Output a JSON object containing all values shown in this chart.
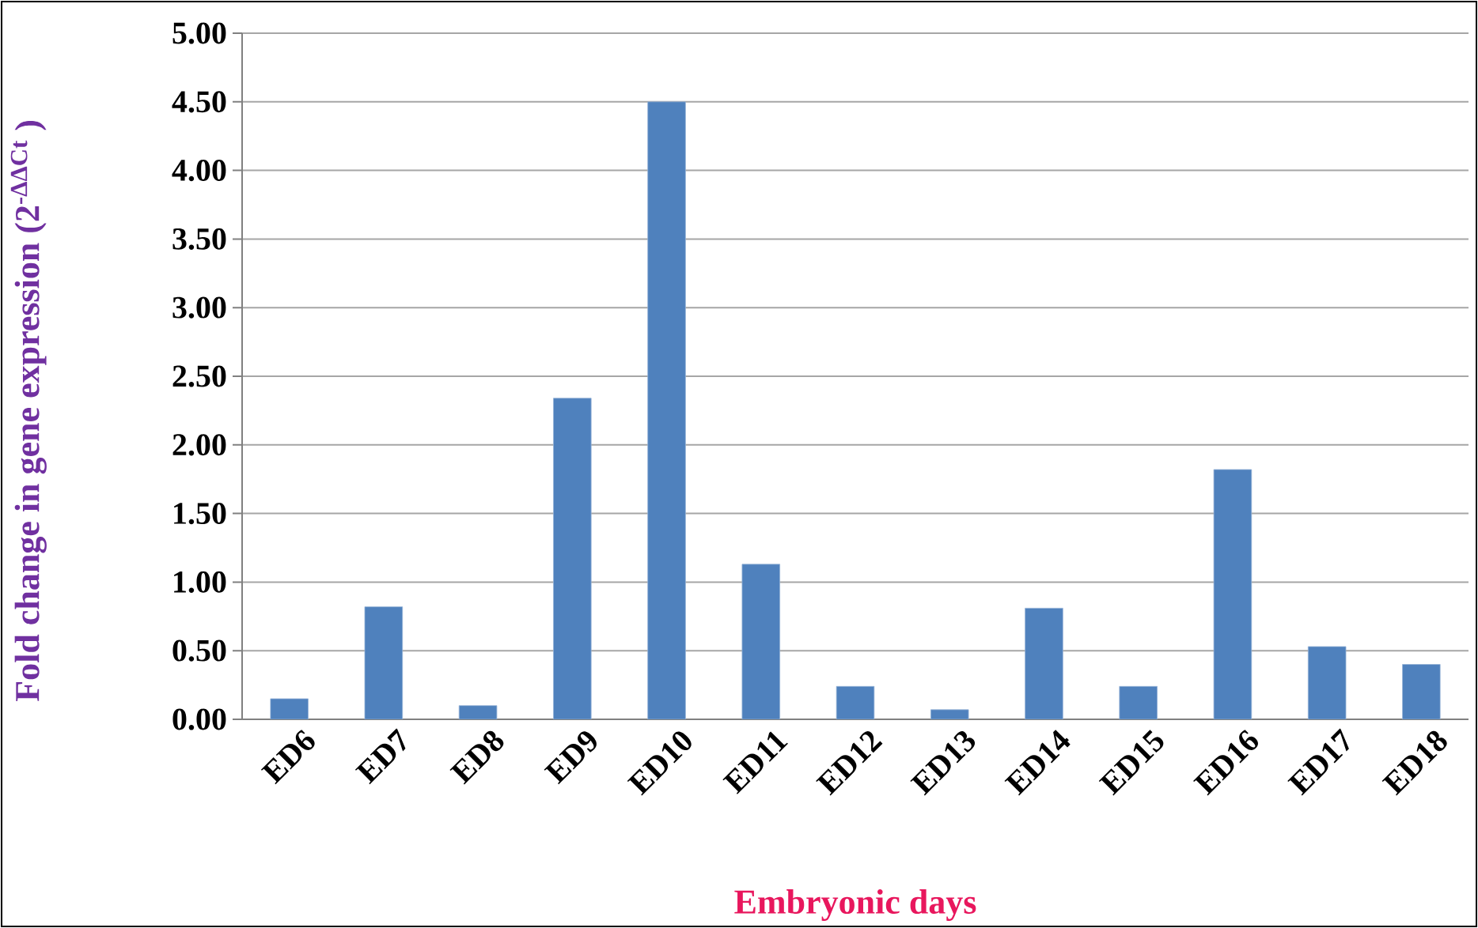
{
  "chart_data": {
    "type": "bar",
    "xlabel": "Embryonic  days",
    "ylabel": "Fold change in gene expression (2$^{-ΔΔCt}$ )",
    "categories": [
      "ED6",
      "ED7",
      "ED8",
      "ED9",
      "ED10",
      "ED11",
      "ED12",
      "ED13",
      "ED14",
      "ED15",
      "ED16",
      "ED17",
      "ED18"
    ],
    "values": [
      0.15,
      0.82,
      0.1,
      2.34,
      4.5,
      1.13,
      0.24,
      0.07,
      0.81,
      0.24,
      1.82,
      0.53,
      0.4
    ],
    "color": "#4f81bd",
    "ylim": [
      0,
      5
    ],
    "yticks": [
      {
        "value": 0,
        "label": "0.00"
      },
      {
        "value": 0.5,
        "label": "0.50"
      },
      {
        "value": 1,
        "label": "1.00"
      },
      {
        "value": 1.5,
        "label": "1.50"
      },
      {
        "value": 2,
        "label": "2.00"
      },
      {
        "value": 2.5,
        "label": "2.50"
      },
      {
        "value": 3,
        "label": "3.00"
      },
      {
        "value": 3.5,
        "label": "3.50"
      },
      {
        "value": 4,
        "label": "4.00"
      },
      {
        "value": 4.5,
        "label": "4.50"
      },
      {
        "value": 5,
        "label": "5.00"
      }
    ],
    "grid": "y"
  }
}
